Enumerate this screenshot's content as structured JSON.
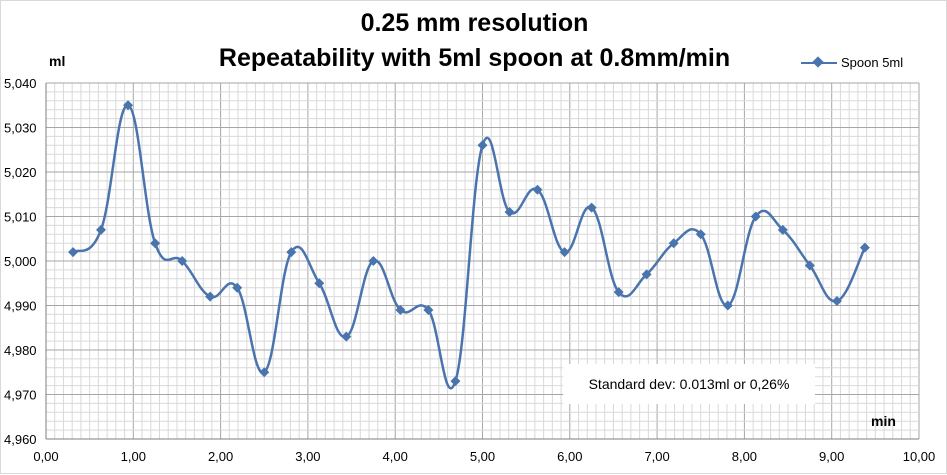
{
  "chart_data": {
    "type": "line",
    "title": "0.25 mm resolution",
    "subtitle": "Repeatability with 5ml spoon at 0.8mm/min",
    "xlabel": "min",
    "ylabel": "ml",
    "xlim": [
      0,
      10
    ],
    "ylim": [
      4.96,
      5.04
    ],
    "x_ticks": [
      "0,00",
      "1,00",
      "2,00",
      "3,00",
      "4,00",
      "5,00",
      "6,00",
      "7,00",
      "8,00",
      "9,00",
      "10,00"
    ],
    "y_ticks": [
      "4,960",
      "4,970",
      "4,980",
      "4,990",
      "5,000",
      "5,010",
      "5,020",
      "5,030",
      "5,040"
    ],
    "grid": true,
    "legend_position": "top-right",
    "annotation": "Standard  dev: 0.013ml or 0,26%",
    "series": [
      {
        "name": "Spoon 5ml",
        "color": "#4a74ad",
        "marker": "diamond",
        "smooth": true,
        "x": [
          0.31,
          0.63,
          0.94,
          1.25,
          1.56,
          1.88,
          2.19,
          2.5,
          2.81,
          3.13,
          3.44,
          3.75,
          4.06,
          4.38,
          4.69,
          5.0,
          5.31,
          5.63,
          5.94,
          6.25,
          6.56,
          6.88,
          7.19,
          7.5,
          7.81,
          8.13,
          8.44,
          8.75,
          9.06,
          9.38
        ],
        "y": [
          5.002,
          5.007,
          5.035,
          5.004,
          5.0,
          4.992,
          4.994,
          4.975,
          5.002,
          4.995,
          4.983,
          5.0,
          4.989,
          4.989,
          4.973,
          5.026,
          5.011,
          5.016,
          5.002,
          5.012,
          4.993,
          4.997,
          5.004,
          5.006,
          4.99,
          5.01,
          5.007,
          4.999,
          4.991,
          5.003
        ]
      }
    ]
  }
}
